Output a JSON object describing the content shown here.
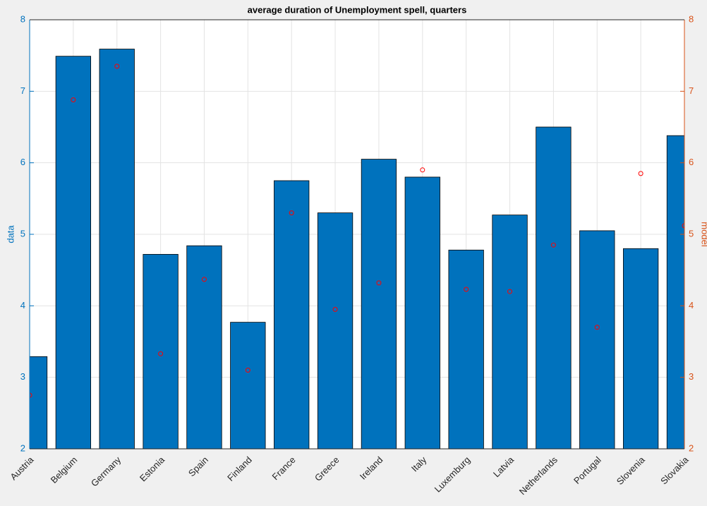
{
  "chart_data": {
    "type": "bar",
    "title": "average duration of Unemployment spell, quarters",
    "y_label": "data",
    "y2_label": "model",
    "categories": [
      "Austria",
      "Belgium",
      "Germany",
      "Estonia",
      "Spain",
      "Finland",
      "France",
      "Greece",
      "Ireland",
      "Italy",
      "Luxemburg",
      "Latvia",
      "Netherlands",
      "Portugal",
      "Slovenia",
      "Slovakia"
    ],
    "series": [
      {
        "name": "data",
        "color": "#0072bd",
        "values": [
          3.29,
          7.49,
          7.59,
          4.72,
          4.84,
          3.77,
          5.75,
          5.3,
          6.05,
          5.8,
          4.78,
          5.27,
          6.5,
          5.05,
          4.8,
          6.38
        ]
      },
      {
        "name": "model",
        "color": "#ff0000",
        "axis": "y2",
        "values": [
          2.75,
          6.88,
          7.35,
          3.33,
          4.37,
          3.1,
          5.3,
          3.95,
          4.32,
          5.9,
          4.23,
          4.2,
          4.85,
          3.7,
          5.85,
          5.12
        ]
      }
    ],
    "ylim": [
      2,
      8
    ],
    "yticks": [
      2,
      3,
      4,
      5,
      6,
      7,
      8
    ],
    "y2lim": [
      2,
      8
    ],
    "y2ticks": [
      2,
      3,
      4,
      5,
      6,
      7,
      8
    ],
    "y_color": "#0072bd",
    "y2_color": "#d95319",
    "grid": true
  }
}
